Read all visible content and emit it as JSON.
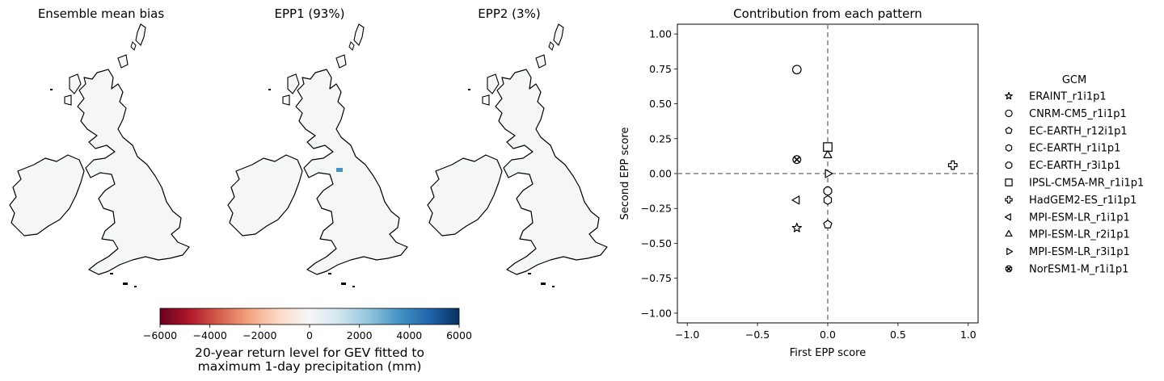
{
  "map_panels": [
    {
      "title": "Ensemble mean bias"
    },
    {
      "title": "EPP1 (93%)"
    },
    {
      "title": "EPP2 (3%)"
    }
  ],
  "colorbar": {
    "colormap": "RdBu",
    "range": [
      -6000,
      6000
    ],
    "ticks": [
      "−6000",
      "−4000",
      "−2000",
      "0",
      "2000",
      "4000",
      "6000"
    ],
    "tick_values": [
      -6000,
      -4000,
      -2000,
      0,
      2000,
      4000,
      6000
    ],
    "label_line1": "20-year return level for GEV fitted to",
    "label_line2": "maximum 1-day precipitation (mm)"
  },
  "chart_data": {
    "type": "scatter",
    "title": "Contribution from each pattern",
    "xlabel": "First EPP score",
    "ylabel": "Second EPP score",
    "xlim": [
      -1.07,
      1.07
    ],
    "ylim": [
      -1.07,
      1.07
    ],
    "xticks": [
      -1.0,
      -0.5,
      0.0,
      0.5,
      1.0
    ],
    "xtick_labels": [
      "−1.0",
      "−0.5",
      "0.0",
      "0.5",
      "1.0"
    ],
    "yticks": [
      1.0,
      0.75,
      0.5,
      0.25,
      0.0,
      -0.25,
      -0.5,
      -0.75,
      -1.0
    ],
    "ytick_labels": [
      "1.00",
      "0.75",
      "0.50",
      "0.25",
      "0.00",
      "−0.25",
      "−0.50",
      "−0.75",
      "−1.00"
    ],
    "reference_lines": {
      "x": 0,
      "y": 0,
      "style": "dashed",
      "color": "#808080"
    },
    "legend_title": "GCM",
    "legend_position": "right",
    "series": [
      {
        "name": "ERAINT_r1i1p1",
        "marker": "star",
        "x": -0.22,
        "y": -0.39
      },
      {
        "name": "CNRM-CM5_r1i1p1",
        "marker": "circle",
        "x": -0.22,
        "y": 0.745
      },
      {
        "name": "EC-EARTH_r12i1p1",
        "marker": "pentagon",
        "x": 0.0,
        "y": -0.365
      },
      {
        "name": "EC-EARTH_r1i1p1",
        "marker": "hexagon",
        "x": 0.0,
        "y": -0.19
      },
      {
        "name": "EC-EARTH_r3i1p1",
        "marker": "octagon",
        "x": 0.0,
        "y": -0.125
      },
      {
        "name": "IPSL-CM5A-MR_r1i1p1",
        "marker": "square",
        "x": 0.0,
        "y": 0.19
      },
      {
        "name": "HadGEM2-ES_r1i1p1",
        "marker": "plus",
        "x": 0.89,
        "y": 0.06
      },
      {
        "name": "MPI-ESM-LR_r1i1p1",
        "marker": "triangle-left",
        "x": -0.22,
        "y": -0.19
      },
      {
        "name": "MPI-ESM-LR_r2i1p1",
        "marker": "triangle-up",
        "x": 0.0,
        "y": 0.13
      },
      {
        "name": "MPI-ESM-LR_r3i1p1",
        "marker": "triangle-right",
        "x": 0.0,
        "y": 0.0
      },
      {
        "name": "NorESM1-M_r1i1p1",
        "marker": "x-filled",
        "x": -0.22,
        "y": 0.1
      }
    ]
  }
}
